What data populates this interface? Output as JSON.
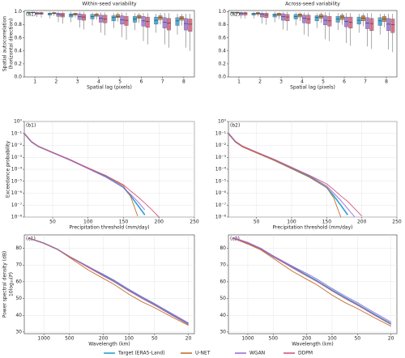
{
  "series_styles": [
    {
      "name": "Target (ERA5-Land)",
      "color": "#2a9fd6"
    },
    {
      "name": "U-NET",
      "color": "#c0702e"
    },
    {
      "name": "WGAN",
      "color": "#9c6fd8"
    },
    {
      "name": "DDPM",
      "color": "#d4577a"
    }
  ],
  "chart_data": [
    {
      "type": "box",
      "title": "Within-seed variability",
      "label": "(a1)",
      "ylabel": [
        "Spatial autocorrelation",
        "(horizontal direction)"
      ],
      "xlabel": "Spatial lag (pixels)",
      "categories": [
        1,
        2,
        3,
        4,
        5,
        6,
        7,
        8
      ],
      "ylim": [
        0,
        1.02
      ],
      "yticks": [
        {
          "value": 0,
          "label": "0.0"
        },
        {
          "value": 0.2,
          "label": "0.2"
        },
        {
          "value": 0.4,
          "label": "0.4"
        },
        {
          "value": 0.6,
          "label": "0.6"
        },
        {
          "value": 0.8,
          "label": "0.8"
        },
        {
          "value": 1,
          "label": "1.0"
        }
      ],
      "series": [
        {
          "median": [
            0.99,
            0.97,
            0.95,
            0.93,
            0.91,
            0.89,
            0.87,
            0.86
          ],
          "q1": [
            0.98,
            0.95,
            0.92,
            0.89,
            0.86,
            0.84,
            0.81,
            0.79
          ],
          "q3": [
            0.995,
            0.98,
            0.97,
            0.96,
            0.94,
            0.93,
            0.92,
            0.91
          ],
          "whislo": [
            0.96,
            0.9,
            0.84,
            0.79,
            0.75,
            0.72,
            0.68,
            0.65
          ],
          "whishi": [
            1,
            1,
            1,
            0.99,
            0.98,
            0.98,
            0.97,
            0.97
          ]
        },
        {
          "median": [
            0.99,
            0.98,
            0.96,
            0.95,
            0.93,
            0.92,
            0.91,
            0.9
          ],
          "q1": [
            0.985,
            0.97,
            0.95,
            0.93,
            0.91,
            0.9,
            0.88,
            0.87
          ],
          "q3": [
            0.995,
            0.99,
            0.98,
            0.97,
            0.96,
            0.95,
            0.94,
            0.93
          ],
          "whislo": [
            0.97,
            0.94,
            0.91,
            0.88,
            0.85,
            0.83,
            0.81,
            0.79
          ],
          "whishi": [
            1,
            1,
            0.99,
            0.99,
            0.99,
            0.98,
            0.98,
            0.97
          ]
        },
        {
          "median": [
            0.98,
            0.96,
            0.93,
            0.9,
            0.88,
            0.86,
            0.84,
            0.82
          ],
          "q1": [
            0.96,
            0.93,
            0.88,
            0.84,
            0.81,
            0.78,
            0.75,
            0.72
          ],
          "q3": [
            0.99,
            0.98,
            0.97,
            0.95,
            0.94,
            0.93,
            0.91,
            0.9
          ],
          "whislo": [
            0.92,
            0.84,
            0.76,
            0.68,
            0.61,
            0.55,
            0.5,
            0.45
          ],
          "whishi": [
            1,
            1,
            1,
            0.99,
            0.99,
            0.98,
            0.98,
            0.97
          ]
        },
        {
          "median": [
            0.98,
            0.95,
            0.92,
            0.89,
            0.87,
            0.85,
            0.83,
            0.81
          ],
          "q1": [
            0.96,
            0.92,
            0.87,
            0.83,
            0.79,
            0.76,
            0.72,
            0.7
          ],
          "q3": [
            0.99,
            0.98,
            0.96,
            0.95,
            0.93,
            0.92,
            0.9,
            0.89
          ],
          "whislo": [
            0.91,
            0.82,
            0.73,
            0.64,
            0.57,
            0.5,
            0.45,
            0.4
          ],
          "whishi": [
            1,
            1,
            1,
            0.99,
            0.99,
            0.98,
            0.98,
            0.97
          ]
        }
      ]
    },
    {
      "type": "box",
      "title": "Across-seed variability",
      "label": "(a2)",
      "xlabel": "Spatial lag (pixels)",
      "categories": [
        1,
        2,
        3,
        4,
        5,
        6,
        7,
        8
      ],
      "ylim": [
        0,
        1.02
      ],
      "yticks": [
        {
          "value": 0,
          "label": "0.0"
        },
        {
          "value": 0.2,
          "label": "0.2"
        },
        {
          "value": 0.4,
          "label": "0.4"
        },
        {
          "value": 0.6,
          "label": "0.6"
        },
        {
          "value": 0.8,
          "label": "0.8"
        },
        {
          "value": 1,
          "label": "1.0"
        }
      ],
      "series": [
        {
          "median": [
            0.99,
            0.97,
            0.95,
            0.93,
            0.91,
            0.89,
            0.87,
            0.86
          ],
          "q1": [
            0.98,
            0.95,
            0.92,
            0.89,
            0.86,
            0.84,
            0.81,
            0.79
          ],
          "q3": [
            0.995,
            0.98,
            0.97,
            0.96,
            0.94,
            0.93,
            0.92,
            0.91
          ],
          "whislo": [
            0.96,
            0.9,
            0.84,
            0.79,
            0.75,
            0.72,
            0.68,
            0.65
          ],
          "whishi": [
            1,
            1,
            1,
            0.99,
            0.98,
            0.98,
            0.97,
            0.97
          ]
        },
        {
          "median": [
            0.99,
            0.98,
            0.96,
            0.95,
            0.93,
            0.92,
            0.9,
            0.89
          ],
          "q1": [
            0.98,
            0.96,
            0.94,
            0.92,
            0.9,
            0.88,
            0.86,
            0.85
          ],
          "q3": [
            0.995,
            0.99,
            0.98,
            0.97,
            0.96,
            0.95,
            0.94,
            0.93
          ],
          "whislo": [
            0.96,
            0.93,
            0.89,
            0.86,
            0.83,
            0.8,
            0.78,
            0.76
          ],
          "whishi": [
            1,
            1,
            0.99,
            0.99,
            0.99,
            0.98,
            0.98,
            0.97
          ]
        },
        {
          "median": [
            0.98,
            0.96,
            0.93,
            0.9,
            0.87,
            0.85,
            0.83,
            0.81
          ],
          "q1": [
            0.95,
            0.92,
            0.87,
            0.83,
            0.8,
            0.77,
            0.74,
            0.71
          ],
          "q3": [
            0.99,
            0.98,
            0.97,
            0.95,
            0.94,
            0.92,
            0.91,
            0.9
          ],
          "whislo": [
            0.9,
            0.82,
            0.73,
            0.65,
            0.58,
            0.52,
            0.47,
            0.42
          ],
          "whishi": [
            1,
            1,
            1,
            0.99,
            0.99,
            0.98,
            0.98,
            0.97
          ]
        },
        {
          "median": [
            0.98,
            0.95,
            0.92,
            0.89,
            0.86,
            0.84,
            0.82,
            0.8
          ],
          "q1": [
            0.95,
            0.91,
            0.86,
            0.82,
            0.78,
            0.75,
            0.71,
            0.68
          ],
          "q3": [
            0.99,
            0.98,
            0.96,
            0.95,
            0.93,
            0.92,
            0.9,
            0.89
          ],
          "whislo": [
            0.9,
            0.8,
            0.71,
            0.62,
            0.55,
            0.48,
            0.43,
            0.38
          ],
          "whishi": [
            1,
            1,
            1,
            0.99,
            0.99,
            0.98,
            0.98,
            0.97
          ]
        }
      ]
    },
    {
      "type": "line",
      "label": "(b1)",
      "ylabel": [
        "Exceedance probability"
      ],
      "xlabel": "Precipitation threshold (mm/day)",
      "log_y": true,
      "grid": true,
      "xlim": [
        10,
        250
      ],
      "xticks": [
        50,
        100,
        150,
        200,
        250
      ],
      "ylim": [
        1e-08,
        1
      ],
      "yticks": [
        {
          "value": 1e-08,
          "label": "10⁻⁸"
        },
        {
          "value": 1e-07,
          "label": "10⁻⁷"
        },
        {
          "value": 1e-06,
          "label": "10⁻⁶"
        },
        {
          "value": 1e-05,
          "label": "10⁻⁵"
        },
        {
          "value": 0.0001,
          "label": "10⁻⁴"
        },
        {
          "value": 0.001,
          "label": "10⁻³"
        },
        {
          "value": 0.01,
          "label": "10⁻²"
        },
        {
          "value": 0.1,
          "label": "10⁻¹"
        },
        {
          "value": 1,
          "label": "10⁰"
        }
      ],
      "x": [
        10,
        20,
        30,
        50,
        75,
        100,
        125,
        150,
        160,
        170,
        180,
        190,
        200
      ],
      "series": [
        {
          "values": [
            0.1,
            0.02,
            0.008,
            0.0025,
            0.0006,
            0.00012,
            2.5e-05,
            3e-06,
            6e-07,
            1e-07,
            1.5e-08,
            null,
            null
          ]
        },
        {
          "values": [
            0.1,
            0.02,
            0.008,
            0.0025,
            0.0006,
            0.00013,
            3e-05,
            4e-06,
            5e-07,
            1.2e-08,
            null,
            null,
            null
          ]
        },
        {
          "values": [
            0.1,
            0.02,
            0.008,
            0.0024,
            0.00055,
            0.00011,
            2.2e-05,
            3e-06,
            8e-07,
            2e-07,
            4e-08,
            null,
            null
          ]
        },
        {
          "values": [
            0.1,
            0.021,
            0.0085,
            0.0026,
            0.00062,
            0.00013,
            3e-05,
            5e-06,
            1.5e-06,
            5e-07,
            1.5e-07,
            4e-08,
            1e-08
          ]
        }
      ]
    },
    {
      "type": "line",
      "label": "(b2)",
      "xlabel": "Precipitation threshold (mm/day)",
      "log_y": true,
      "grid": true,
      "xlim": [
        10,
        250
      ],
      "xticks": [
        50,
        100,
        150,
        200,
        250
      ],
      "ylim": [
        1e-08,
        1
      ],
      "yticks": [
        {
          "value": 1e-08,
          "label": "10⁻⁸"
        },
        {
          "value": 1e-07,
          "label": "10⁻⁷"
        },
        {
          "value": 1e-06,
          "label": "10⁻⁶"
        },
        {
          "value": 1e-05,
          "label": "10⁻⁵"
        },
        {
          "value": 0.0001,
          "label": "10⁻⁴"
        },
        {
          "value": 0.001,
          "label": "10⁻³"
        },
        {
          "value": 0.01,
          "label": "10⁻²"
        },
        {
          "value": 0.1,
          "label": "10⁻¹"
        },
        {
          "value": 1,
          "label": "10⁰"
        }
      ],
      "x": [
        10,
        20,
        30,
        50,
        75,
        100,
        125,
        150,
        160,
        170,
        180,
        190,
        200
      ],
      "series": [
        {
          "values": [
            0.1,
            0.02,
            0.008,
            0.0025,
            0.0006,
            0.00012,
            2.5e-05,
            3e-06,
            6e-07,
            1e-07,
            1.5e-08,
            null,
            null
          ]
        },
        {
          "values": [
            0.1,
            0.019,
            0.0075,
            0.0023,
            0.00055,
            0.00011,
            2.2e-05,
            3e-06,
            4e-07,
            1e-08,
            null,
            null,
            null
          ]
        },
        {
          "values": [
            0.11,
            0.022,
            0.009,
            0.0028,
            0.0007,
            0.00015,
            3e-05,
            4e-06,
            1e-06,
            2.5e-07,
            5e-08,
            1e-08,
            null
          ]
        },
        {
          "values": [
            0.1,
            0.021,
            0.0085,
            0.0027,
            0.00065,
            0.00014,
            3.2e-05,
            6e-06,
            2e-06,
            6e-07,
            2e-07,
            5e-08,
            1.2e-08
          ]
        }
      ]
    },
    {
      "type": "line",
      "label": "(c1)",
      "ylabel": [
        "Power spectral density (dB)",
        "10log₁₀(P)"
      ],
      "xlabel": "Wavelength (km)",
      "log_x": true,
      "grid": true,
      "xlim": [
        1700,
        17
      ],
      "xticks": [
        1000,
        500,
        200,
        100,
        50,
        20
      ],
      "ylim": [
        29,
        88
      ],
      "yticks": [
        30,
        40,
        50,
        60,
        70,
        80
      ],
      "x": [
        1500,
        1000,
        700,
        500,
        300,
        200,
        150,
        100,
        70,
        50,
        30,
        20
      ],
      "series": [
        {
          "values": [
            86,
            83,
            79.5,
            75,
            69,
            64,
            60.5,
            55,
            50.5,
            46.5,
            40,
            35
          ]
        },
        {
          "values": [
            86,
            83,
            79.5,
            74.5,
            67,
            62,
            58.5,
            52.5,
            48,
            44.5,
            38.5,
            34
          ]
        },
        {
          "values": [
            86,
            83,
            79.5,
            75,
            69,
            64.5,
            61,
            55.5,
            51,
            47,
            40.5,
            35.5
          ]
        },
        {
          "values": [
            86,
            83,
            79.5,
            75,
            68.5,
            63.5,
            60,
            54.5,
            50,
            46,
            39.5,
            34.5
          ]
        }
      ]
    },
    {
      "type": "line",
      "label": "(c2)",
      "xlabel": "Wavelength (km)",
      "log_x": true,
      "grid": true,
      "xlim": [
        1700,
        17
      ],
      "xticks": [
        1000,
        500,
        200,
        100,
        50,
        20
      ],
      "ylim": [
        29,
        88
      ],
      "yticks": [
        30,
        40,
        50,
        60,
        70,
        80
      ],
      "x": [
        1500,
        1000,
        700,
        500,
        300,
        200,
        150,
        100,
        70,
        50,
        30,
        20
      ],
      "series": [
        {
          "values": [
            86,
            83,
            79.5,
            75,
            69,
            64,
            60.5,
            55,
            50.5,
            46.5,
            40,
            35
          ]
        },
        {
          "values": [
            86,
            82.5,
            79,
            74,
            66.5,
            61.5,
            58,
            52,
            47.5,
            44,
            38,
            33.5
          ]
        },
        {
          "values": [
            86.5,
            83.5,
            80,
            75.5,
            69.5,
            65,
            61.5,
            56,
            51.5,
            47.5,
            41,
            36
          ]
        },
        {
          "values": [
            86,
            83,
            79.5,
            75,
            68.5,
            63.5,
            60,
            54.5,
            50,
            46,
            39.5,
            34.5
          ]
        }
      ]
    }
  ]
}
